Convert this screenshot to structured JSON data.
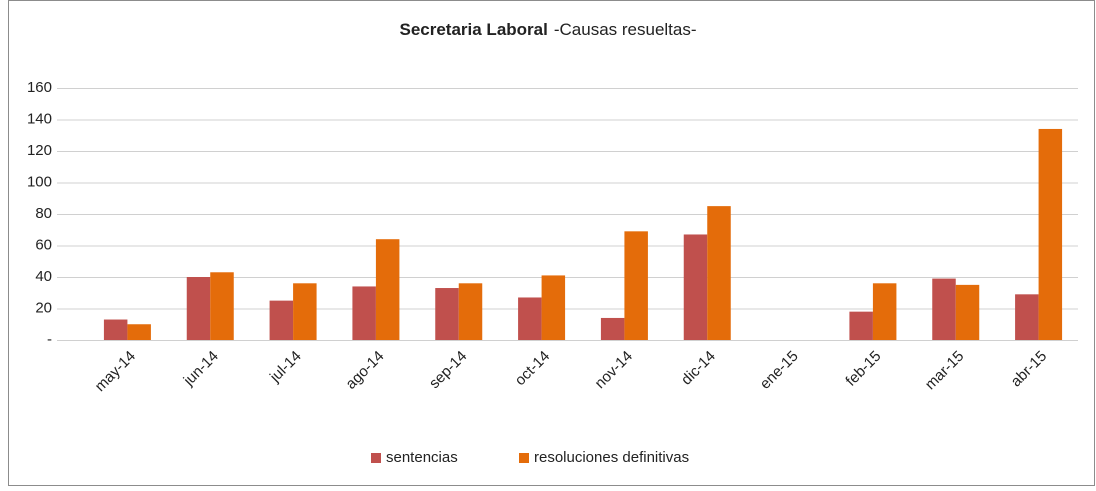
{
  "chart_data": {
    "type": "bar",
    "title": "Secretaria Laboral",
    "subtitle": "-Causas resueltas-",
    "categories": [
      "may-14",
      "jun-14",
      "jul-14",
      "ago-14",
      "sep-14",
      "oct-14",
      "nov-14",
      "dic-14",
      "ene-15",
      "feb-15",
      "mar-15",
      "abr-15"
    ],
    "series": [
      {
        "name": "sentencias",
        "color": "#c0504d",
        "values": [
          13,
          40,
          25,
          34,
          33,
          27,
          14,
          67,
          0,
          18,
          39,
          29
        ]
      },
      {
        "name": "resoluciones definitivas",
        "color": "#e46c0a",
        "values": [
          10,
          43,
          36,
          64,
          36,
          41,
          69,
          85,
          0,
          36,
          35,
          134
        ]
      }
    ],
    "ylim": [
      0,
      160
    ],
    "yticks": [
      {
        "value": 0,
        "label": "-"
      },
      20,
      40,
      60,
      80,
      100,
      120,
      140,
      160
    ],
    "grid": true,
    "legend": "bottom"
  }
}
